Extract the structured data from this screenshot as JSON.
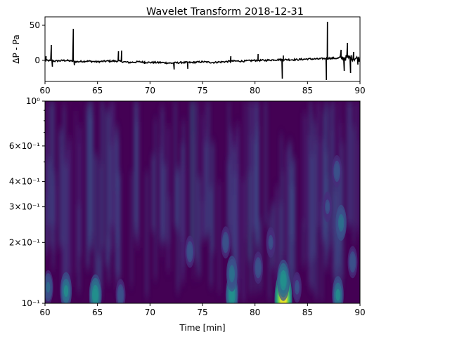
{
  "figure": {
    "title": "Wavelet Transform 2018-12-31"
  },
  "chart_data": [
    {
      "type": "line",
      "ylabel": "ΔP - Pa",
      "xlim": [
        60,
        90
      ],
      "ylim": [
        -30,
        62
      ],
      "x_ticks": [
        60,
        65,
        70,
        75,
        80,
        85,
        90
      ],
      "x_tick_labels": [
        "60",
        "65",
        "70",
        "75",
        "80",
        "85",
        "90"
      ],
      "y_ticks": [
        0,
        50
      ],
      "y_tick_labels": [
        "0",
        "50"
      ],
      "series_color": "#000000",
      "x": [
        60,
        61,
        62,
        63,
        64,
        65,
        66,
        67,
        68,
        69,
        70,
        71,
        72,
        73,
        74,
        75,
        76,
        77,
        78,
        79,
        80,
        81,
        82,
        83,
        84,
        85,
        86,
        87,
        88,
        89,
        90
      ],
      "y": [
        0,
        -1,
        0,
        -2,
        -1,
        -2,
        -1,
        -1,
        -3,
        -2,
        -3,
        -3,
        -4,
        -3,
        -3,
        -2,
        -3,
        -2,
        -1,
        -1,
        0,
        0,
        1,
        1,
        1,
        2,
        2,
        3,
        3,
        4,
        2
      ],
      "spikes": [
        {
          "x": 60.1,
          "y": 6
        },
        {
          "x": 60.6,
          "y": 22
        },
        {
          "x": 60.7,
          "y": -9
        },
        {
          "x": 62.7,
          "y": 45
        },
        {
          "x": 62.8,
          "y": -7
        },
        {
          "x": 67.0,
          "y": 13
        },
        {
          "x": 67.3,
          "y": 14
        },
        {
          "x": 69.5,
          "y": -5
        },
        {
          "x": 72.3,
          "y": -13
        },
        {
          "x": 73.6,
          "y": -12
        },
        {
          "x": 77.7,
          "y": 6
        },
        {
          "x": 80.3,
          "y": 9
        },
        {
          "x": 82.6,
          "y": -26
        },
        {
          "x": 82.7,
          "y": 7
        },
        {
          "x": 86.8,
          "y": -28
        },
        {
          "x": 86.9,
          "y": 55
        },
        {
          "x": 88.2,
          "y": 15
        },
        {
          "x": 88.5,
          "y": -15
        },
        {
          "x": 88.8,
          "y": 25
        },
        {
          "x": 89.1,
          "y": -18
        },
        {
          "x": 89.4,
          "y": 12
        },
        {
          "x": 89.8,
          "y": -6
        }
      ]
    },
    {
      "type": "heatmap",
      "title": "",
      "xlabel": "Time  [min]",
      "ylabel": "",
      "xlim": [
        60,
        90
      ],
      "ylim": [
        0.1,
        1.0
      ],
      "y_scale": "log",
      "colormap": "viridis",
      "x_ticks": [
        60,
        65,
        70,
        75,
        80,
        85,
        90
      ],
      "x_tick_labels": [
        "60",
        "65",
        "70",
        "75",
        "80",
        "85",
        "90"
      ],
      "y_ticks": [
        0.1,
        0.2,
        0.3,
        0.4,
        0.6,
        1.0
      ],
      "y_tick_labels": [
        "10⁻¹",
        "2×10⁻¹",
        "3×10⁻¹",
        "4×10⁻¹",
        "6×10⁻¹",
        "10⁰"
      ],
      "y_minor_ticks": [
        0.5,
        0.7,
        0.8,
        0.9
      ],
      "hotspots": [
        {
          "x": 82.7,
          "y": 0.105,
          "v": 1.0
        },
        {
          "x": 82.7,
          "y": 0.13,
          "v": 0.55
        },
        {
          "x": 64.8,
          "y": 0.11,
          "v": 0.55
        },
        {
          "x": 62.0,
          "y": 0.115,
          "v": 0.45
        },
        {
          "x": 77.8,
          "y": 0.11,
          "v": 0.55
        },
        {
          "x": 77.8,
          "y": 0.14,
          "v": 0.4
        },
        {
          "x": 87.9,
          "y": 0.11,
          "v": 0.45
        },
        {
          "x": 88.2,
          "y": 0.25,
          "v": 0.4
        },
        {
          "x": 87.8,
          "y": 0.45,
          "v": 0.3
        },
        {
          "x": 60.3,
          "y": 0.12,
          "v": 0.35
        },
        {
          "x": 67.2,
          "y": 0.11,
          "v": 0.3
        },
        {
          "x": 73.8,
          "y": 0.18,
          "v": 0.3
        },
        {
          "x": 77.2,
          "y": 0.2,
          "v": 0.3
        },
        {
          "x": 80.3,
          "y": 0.15,
          "v": 0.3
        },
        {
          "x": 81.5,
          "y": 0.2,
          "v": 0.25
        },
        {
          "x": 84.0,
          "y": 0.12,
          "v": 0.25
        },
        {
          "x": 86.9,
          "y": 0.3,
          "v": 0.25
        },
        {
          "x": 89.3,
          "y": 0.16,
          "v": 0.3
        }
      ]
    }
  ]
}
